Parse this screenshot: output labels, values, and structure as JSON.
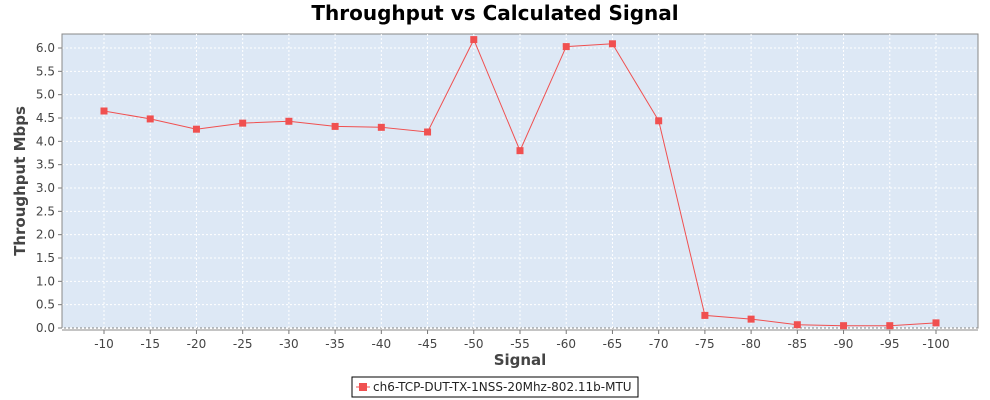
{
  "chart_data": {
    "type": "line",
    "title": "Throughput vs Calculated Signal",
    "xlabel": "Signal",
    "ylabel": "Throughput Mbps",
    "categories": [
      "-10",
      "-15",
      "-20",
      "-25",
      "-30",
      "-35",
      "-40",
      "-45",
      "-50",
      "-55",
      "-60",
      "-65",
      "-70",
      "-75",
      "-80",
      "-85",
      "-90",
      "-95",
      "-100"
    ],
    "series": [
      {
        "name": "ch6-TCP-DUT-TX-1NSS-20Mhz-802.11b-MTU",
        "color": "#f05050",
        "values": [
          4.65,
          4.48,
          4.26,
          4.39,
          4.43,
          4.32,
          4.3,
          4.2,
          6.18,
          3.8,
          6.03,
          6.09,
          4.44,
          0.27,
          0.19,
          0.07,
          0.05,
          0.05,
          0.11
        ]
      }
    ],
    "ylim": [
      0,
      6.3
    ],
    "yticks": [
      0.0,
      0.5,
      1.0,
      1.5,
      2.0,
      2.5,
      3.0,
      3.5,
      4.0,
      4.5,
      5.0,
      5.5,
      6.0
    ],
    "ytick_labels": [
      "0.0",
      "0.5",
      "1.0",
      "1.5",
      "2.0",
      "2.5",
      "3.0",
      "3.5",
      "4.0",
      "4.5",
      "5.0",
      "5.5",
      "6.0"
    ],
    "grid": true,
    "legend_position": "bottom-center",
    "plot_background": "#dde8f5"
  }
}
